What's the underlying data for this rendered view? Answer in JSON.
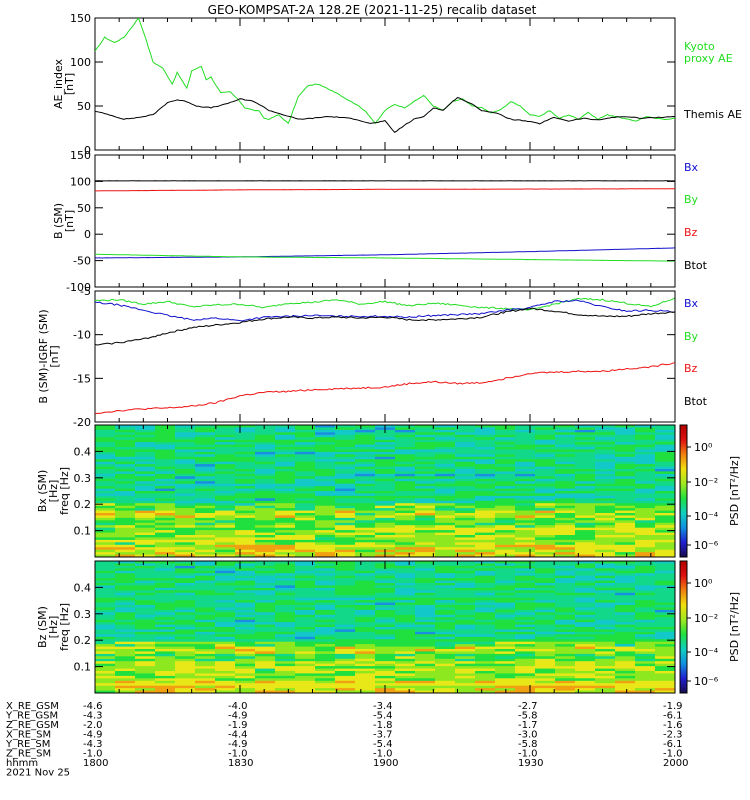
{
  "title": "GEO-KOMPSAT-2A 128.2E (2021-11-25) recalib dataset",
  "colors": {
    "black": "#000000",
    "green": "#22dd22",
    "red": "#ee1111",
    "blue": "#1010cc"
  },
  "chart_data": [
    {
      "type": "line",
      "ylabel": "AE_index [nT]",
      "ylim": [
        0,
        150
      ],
      "yticks": [
        0,
        50,
        100,
        150
      ],
      "x_range_hhmm": [
        "1800",
        "2000"
      ],
      "series": [
        {
          "name": "Kyoto proxy AE",
          "color": "#22dd22",
          "x_min": [
            0,
            2,
            4,
            6,
            9,
            10,
            12,
            14,
            16,
            17,
            19,
            20,
            22,
            23,
            24,
            26,
            28,
            30,
            31,
            33,
            34,
            35,
            36,
            38,
            40,
            42,
            44,
            46,
            48,
            50,
            52,
            54,
            56,
            58,
            60,
            62,
            64,
            66,
            68,
            70,
            72,
            74,
            76,
            78,
            80,
            82,
            84,
            86,
            88,
            90,
            92,
            94,
            96,
            98,
            100,
            102,
            104,
            106,
            108,
            110,
            112,
            114,
            116,
            118,
            120
          ],
          "values": [
            112,
            128,
            122,
            128,
            150,
            135,
            100,
            93,
            75,
            88,
            70,
            90,
            95,
            80,
            83,
            65,
            66,
            55,
            48,
            45,
            44,
            36,
            35,
            40,
            30,
            60,
            73,
            75,
            70,
            65,
            58,
            52,
            44,
            30,
            45,
            52,
            48,
            55,
            62,
            50,
            45,
            55,
            58,
            50,
            48,
            42,
            46,
            55,
            50,
            40,
            38,
            45,
            36,
            40,
            35,
            43,
            35,
            40,
            38,
            35,
            33,
            38,
            36,
            35,
            36
          ]
        },
        {
          "name": "Themis AE",
          "color": "#000000",
          "x_min": [
            0,
            3,
            6,
            9,
            12,
            15,
            17,
            19,
            21,
            24,
            27,
            30,
            33,
            36,
            39,
            42,
            45,
            48,
            51,
            54,
            57,
            60,
            62,
            64,
            66,
            68,
            70,
            72,
            75,
            78,
            80,
            83,
            86,
            89,
            92,
            95,
            98,
            101,
            104,
            107,
            110,
            113,
            116,
            120
          ],
          "values": [
            44,
            40,
            35,
            37,
            40,
            54,
            57,
            55,
            50,
            48,
            52,
            58,
            55,
            45,
            40,
            35,
            36,
            38,
            37,
            35,
            30,
            33,
            20,
            28,
            35,
            38,
            48,
            45,
            60,
            52,
            45,
            42,
            35,
            33,
            30,
            37,
            33,
            36,
            34,
            37,
            38,
            36,
            37,
            38
          ]
        }
      ]
    },
    {
      "type": "line",
      "ylabel": "B (SM) [nT]",
      "ylim": [
        -100,
        150
      ],
      "yticks": [
        -100,
        -50,
        0,
        50,
        100,
        150
      ],
      "x_range_hhmm": [
        "1800",
        "2000"
      ],
      "series": [
        {
          "name": "Btot",
          "color": "#000000",
          "x_min": [
            0,
            120
          ],
          "values": [
            101,
            101
          ]
        },
        {
          "name": "Bz",
          "color": "#ee1111",
          "x_min": [
            0,
            30,
            60,
            120
          ],
          "values": [
            82,
            84,
            85,
            86
          ]
        },
        {
          "name": "Bx",
          "color": "#1010cc",
          "x_min": [
            0,
            30,
            60,
            90,
            120
          ],
          "values": [
            -45,
            -43,
            -39,
            -33,
            -26
          ]
        },
        {
          "name": "By",
          "color": "#22dd22",
          "x_min": [
            0,
            30,
            60,
            90,
            120
          ],
          "values": [
            -38,
            -43,
            -45,
            -48,
            -51
          ]
        }
      ]
    },
    {
      "type": "line",
      "ylabel": "B (SM)-IGRF (SM) [nT]",
      "ylim": [
        -20,
        -5
      ],
      "yticks": [
        -20,
        -15,
        -10,
        -5
      ],
      "x_range_hhmm": [
        "1800",
        "2000"
      ],
      "series": [
        {
          "name": "By",
          "color": "#22dd22",
          "x_min": [
            0,
            5,
            10,
            15,
            20,
            25,
            30,
            35,
            40,
            45,
            50,
            55,
            60,
            65,
            70,
            75,
            80,
            85,
            90,
            95,
            100,
            105,
            110,
            115,
            120
          ],
          "values": [
            -6.1,
            -6.0,
            -6.5,
            -6.2,
            -6.8,
            -6.6,
            -6.5,
            -6.9,
            -6.4,
            -6.3,
            -6.0,
            -6.5,
            -6.2,
            -6.7,
            -6.4,
            -6.6,
            -6.9,
            -7.0,
            -7.2,
            -6.5,
            -5.9,
            -6.0,
            -6.4,
            -6.8,
            -5.8
          ]
        },
        {
          "name": "Bx",
          "color": "#1010cc",
          "x_min": [
            0,
            5,
            10,
            15,
            20,
            25,
            30,
            35,
            40,
            45,
            50,
            55,
            60,
            65,
            70,
            75,
            80,
            85,
            90,
            95,
            100,
            105,
            110,
            115,
            120
          ],
          "values": [
            -6.3,
            -6.6,
            -7.2,
            -7.8,
            -8.3,
            -8.1,
            -8.4,
            -8.0,
            -7.9,
            -7.8,
            -7.9,
            -7.9,
            -7.9,
            -8.0,
            -7.8,
            -7.7,
            -7.6,
            -7.2,
            -6.9,
            -6.2,
            -6.1,
            -6.8,
            -7.3,
            -7.2,
            -7.4
          ]
        },
        {
          "name": "Btot",
          "color": "#000000",
          "x_min": [
            0,
            5,
            10,
            15,
            20,
            25,
            30,
            35,
            40,
            45,
            50,
            55,
            60,
            65,
            70,
            75,
            80,
            85,
            90,
            95,
            100,
            105,
            110,
            115,
            120
          ],
          "values": [
            -11.2,
            -10.9,
            -10.5,
            -9.8,
            -9.2,
            -8.9,
            -8.6,
            -8.2,
            -8.0,
            -8.1,
            -8.0,
            -8.1,
            -8.0,
            -8.3,
            -8.3,
            -8.2,
            -8.0,
            -7.4,
            -7.0,
            -7.3,
            -7.7,
            -7.9,
            -7.9,
            -7.6,
            -7.4
          ]
        },
        {
          "name": "Bz",
          "color": "#ee1111",
          "x_min": [
            0,
            5,
            10,
            15,
            20,
            25,
            30,
            35,
            40,
            45,
            50,
            55,
            60,
            65,
            70,
            75,
            80,
            85,
            90,
            95,
            100,
            105,
            110,
            115,
            120
          ],
          "values": [
            -19.0,
            -18.7,
            -18.5,
            -18.4,
            -18.2,
            -17.8,
            -17.0,
            -16.6,
            -16.5,
            -16.3,
            -16.2,
            -16.1,
            -16.0,
            -15.6,
            -15.4,
            -15.6,
            -15.5,
            -15.0,
            -14.4,
            -14.3,
            -14.2,
            -14.2,
            -13.9,
            -13.7,
            -13.2
          ]
        }
      ]
    },
    {
      "type": "heatmap",
      "ylabel": "Bx (SM) freq [Hz]",
      "yticks": [
        0.1,
        0.2,
        0.3,
        0.4
      ],
      "ylim": [
        0,
        0.5
      ],
      "colorbar_label": "PSD [nT²/Hz]",
      "colorbar_ticks": [
        "10⁰",
        "10⁻²",
        "10⁻⁴",
        "10⁻⁶"
      ],
      "band_note": "enhanced power band near 0.17 Hz"
    },
    {
      "type": "heatmap",
      "ylabel": "Bz (SM) freq [Hz]",
      "yticks": [
        0.1,
        0.2,
        0.3,
        0.4
      ],
      "ylim": [
        0,
        0.5
      ],
      "colorbar_label": "PSD [nT²/Hz]",
      "colorbar_ticks": [
        "10⁰",
        "10⁻²",
        "10⁻⁴",
        "10⁻⁶"
      ]
    }
  ],
  "ephemeris": {
    "rows": [
      {
        "label": "X_RE_GSM",
        "values": [
          "-4.6",
          "-4.0",
          "-3.4",
          "-2.7",
          "-1.9"
        ]
      },
      {
        "label": "Y_RE_GSM",
        "values": [
          "-4.3",
          "-4.9",
          "-5.4",
          "-5.8",
          "-6.1"
        ]
      },
      {
        "label": "Z_RE_GSM",
        "values": [
          "-2.0",
          "-1.9",
          "-1.8",
          "-1.7",
          "-1.6"
        ]
      },
      {
        "label": "X_RE_SM",
        "values": [
          "-4.9",
          "-4.4",
          "-3.7",
          "-3.0",
          "-2.3"
        ]
      },
      {
        "label": "Y_RE_SM",
        "values": [
          "-4.3",
          "-4.9",
          "-5.4",
          "-5.8",
          "-6.1"
        ]
      },
      {
        "label": "Z_RE_SM",
        "values": [
          "-1.0",
          "-1.0",
          "-1.0",
          "-1.0",
          "-1.0"
        ]
      },
      {
        "label": "hhmm",
        "values": [
          "1800",
          "1830",
          "1900",
          "1930",
          "2000"
        ]
      }
    ],
    "date": "2021 Nov 25"
  }
}
